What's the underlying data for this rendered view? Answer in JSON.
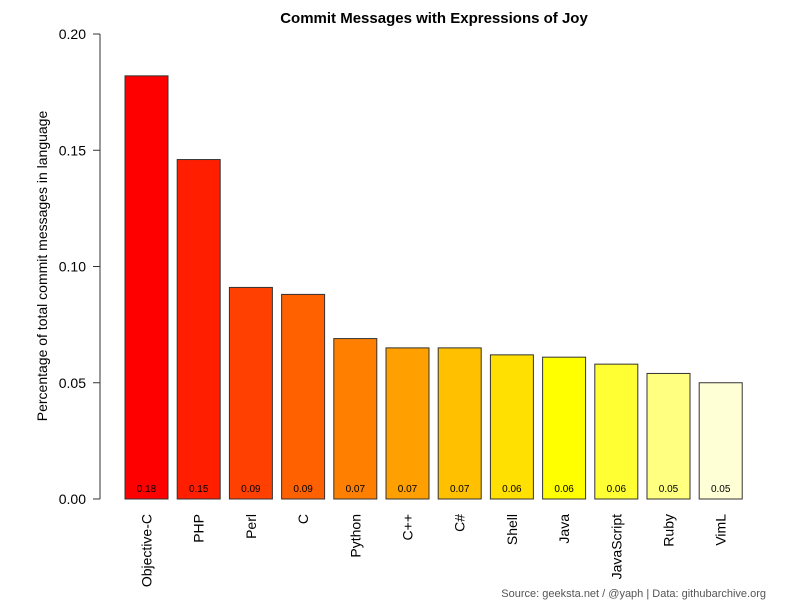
{
  "chart_data": {
    "type": "bar",
    "title": "Commit Messages with Expressions of Joy",
    "xlabel": "",
    "ylabel": "Percentage of total commit messages in language",
    "ylim": [
      0,
      0.2
    ],
    "yticks": [
      "0.00",
      "0.05",
      "0.10",
      "0.15",
      "0.20"
    ],
    "categories": [
      "Objective-C",
      "PHP",
      "Perl",
      "C",
      "Python",
      "C++",
      "C#",
      "Shell",
      "Java",
      "JavaScript",
      "Ruby",
      "VimL"
    ],
    "values": [
      0.182,
      0.146,
      0.091,
      0.088,
      0.069,
      0.065,
      0.065,
      0.062,
      0.061,
      0.058,
      0.054,
      0.05
    ],
    "data_labels": [
      "0.18",
      "0.15",
      "0.09",
      "0.09",
      "0.07",
      "0.07",
      "0.07",
      "0.06",
      "0.06",
      "0.06",
      "0.05",
      "0.05"
    ],
    "colors": [
      "#FF0000",
      "#FF1E00",
      "#FF4000",
      "#FF6000",
      "#FF8000",
      "#FFA000",
      "#FFC000",
      "#FFE000",
      "#FFFF00",
      "#FFFF33",
      "#FFFF80",
      "#FFFFD5"
    ],
    "grid": false,
    "legend": "none"
  },
  "source_note": "Source: geeksta.net / @yaph | Data: githubarchive.org"
}
